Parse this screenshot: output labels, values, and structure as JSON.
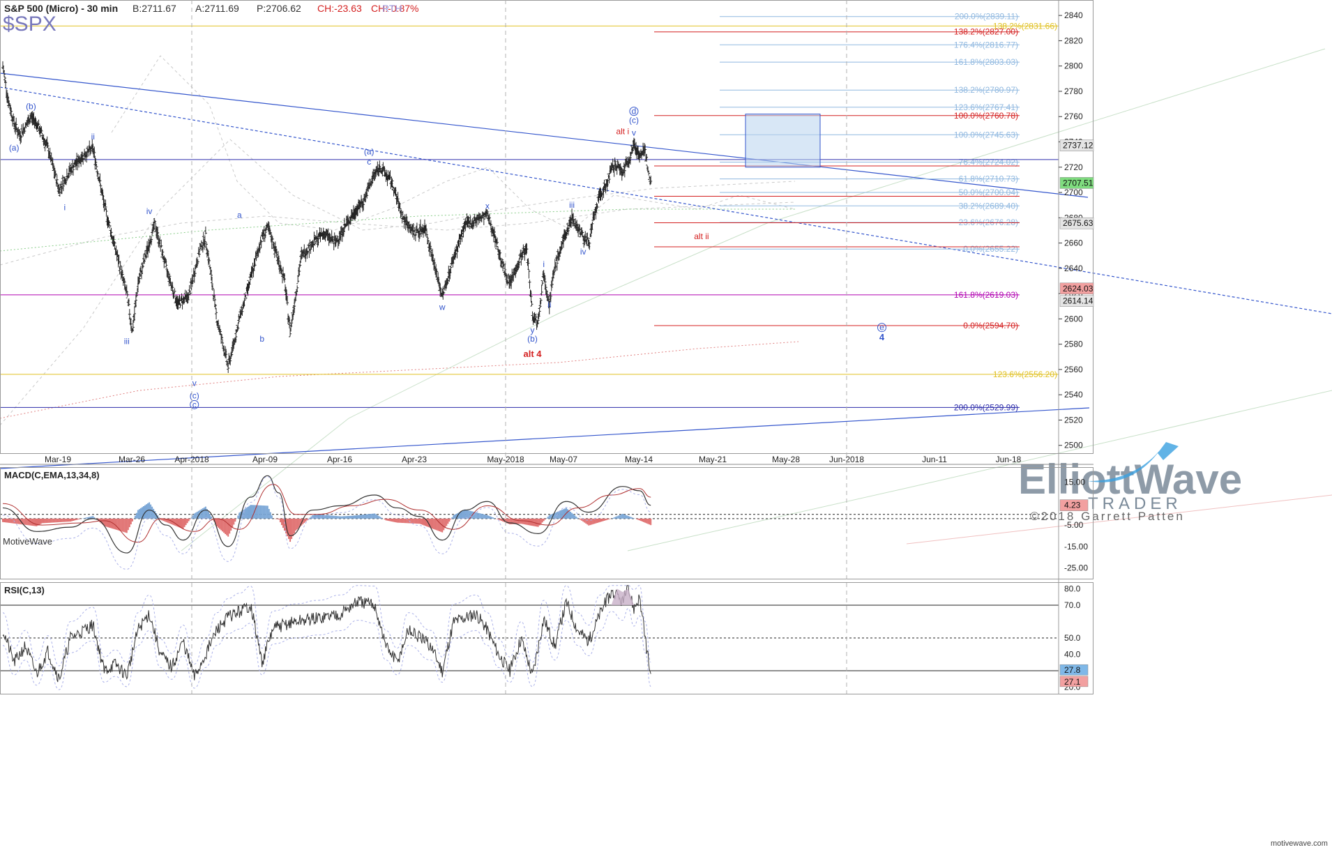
{
  "header": {
    "instrument": "S&P 500 (Micro) - 30 min",
    "bid": "B:2711.67",
    "ask": "A:2711.69",
    "price": "P:2706.62",
    "change": "CH:-23.63",
    "change_pct": "CH:-0.87%",
    "session": "RTH",
    "symbol": "$SPX"
  },
  "watermark": {
    "brand_top": "ElliottWave",
    "brand_bottom": "TRADER",
    "copyright": "©2018 Garrett Patten",
    "platform": "MotiveWave",
    "site": "motivewave.com"
  },
  "colors": {
    "bars": "#222222",
    "blue": "#3355cc",
    "red": "#d42020",
    "magenta": "#b000b0",
    "gold": "#e0c020",
    "lightblue": "#8fb8e0",
    "grid": "#b0b0b0",
    "macd_pos": "#7aa6d6",
    "macd_neg": "#e07070",
    "rsi_band": "#c8b0c8"
  },
  "chart_data": [
    {
      "type": "candlestick",
      "title": "S&P 500 (Micro) - 30 min",
      "x_ticks": [
        "Mar-19",
        "Mar-26",
        "Apr-2018",
        "Apr-09",
        "Apr-16",
        "Apr-23",
        "May-2018",
        "May-07",
        "May-14",
        "May-21",
        "May-28",
        "Jun-2018",
        "Jun-11",
        "Jun-18"
      ],
      "y_ticks": [
        2500,
        2520,
        2540,
        2560,
        2580,
        2600,
        2620,
        2640,
        2660,
        2680,
        2700,
        2720,
        2740,
        2760,
        2780,
        2800,
        2820,
        2840
      ],
      "ylim": [
        2496,
        2850
      ],
      "price_path": [
        {
          "x": 0,
          "y": 2800
        },
        {
          "x": 1,
          "y": 2772
        },
        {
          "x": 2,
          "y": 2755
        },
        {
          "x": 3,
          "y": 2745
        },
        {
          "x": 4,
          "y": 2752
        },
        {
          "x": 5,
          "y": 2760
        },
        {
          "x": 6,
          "y": 2755
        },
        {
          "x": 8,
          "y": 2735
        },
        {
          "x": 10,
          "y": 2702
        },
        {
          "x": 12,
          "y": 2718
        },
        {
          "x": 14,
          "y": 2728
        },
        {
          "x": 16,
          "y": 2735
        },
        {
          "x": 17,
          "y": 2713
        },
        {
          "x": 18,
          "y": 2690
        },
        {
          "x": 20,
          "y": 2655
        },
        {
          "x": 22,
          "y": 2620
        },
        {
          "x": 23,
          "y": 2590
        },
        {
          "x": 24,
          "y": 2628
        },
        {
          "x": 26,
          "y": 2660
        },
        {
          "x": 27,
          "y": 2675
        },
        {
          "x": 29,
          "y": 2640
        },
        {
          "x": 31,
          "y": 2612
        },
        {
          "x": 33,
          "y": 2618
        },
        {
          "x": 35,
          "y": 2655
        },
        {
          "x": 36,
          "y": 2665
        },
        {
          "x": 38,
          "y": 2600
        },
        {
          "x": 40,
          "y": 2562
        },
        {
          "x": 42,
          "y": 2600
        },
        {
          "x": 44,
          "y": 2632
        },
        {
          "x": 46,
          "y": 2665
        },
        {
          "x": 47,
          "y": 2672
        },
        {
          "x": 48,
          "y": 2660
        },
        {
          "x": 50,
          "y": 2630
        },
        {
          "x": 51,
          "y": 2590
        },
        {
          "x": 53,
          "y": 2650
        },
        {
          "x": 55,
          "y": 2660
        },
        {
          "x": 57,
          "y": 2668
        },
        {
          "x": 59,
          "y": 2660
        },
        {
          "x": 61,
          "y": 2675
        },
        {
          "x": 63,
          "y": 2688
        },
        {
          "x": 64,
          "y": 2693
        },
        {
          "x": 66,
          "y": 2715
        },
        {
          "x": 67,
          "y": 2720
        },
        {
          "x": 69,
          "y": 2708
        },
        {
          "x": 71,
          "y": 2680
        },
        {
          "x": 73,
          "y": 2668
        },
        {
          "x": 75,
          "y": 2672
        },
        {
          "x": 77,
          "y": 2635
        },
        {
          "x": 78,
          "y": 2618
        },
        {
          "x": 80,
          "y": 2648
        },
        {
          "x": 82,
          "y": 2674
        },
        {
          "x": 84,
          "y": 2678
        },
        {
          "x": 86,
          "y": 2682
        },
        {
          "x": 87,
          "y": 2670
        },
        {
          "x": 89,
          "y": 2638
        },
        {
          "x": 90,
          "y": 2628
        },
        {
          "x": 92,
          "y": 2650
        },
        {
          "x": 93,
          "y": 2655
        },
        {
          "x": 94,
          "y": 2603
        },
        {
          "x": 95,
          "y": 2598
        },
        {
          "x": 96,
          "y": 2637
        },
        {
          "x": 97,
          "y": 2612
        },
        {
          "x": 98,
          "y": 2642
        },
        {
          "x": 100,
          "y": 2668
        },
        {
          "x": 101,
          "y": 2680
        },
        {
          "x": 103,
          "y": 2665
        },
        {
          "x": 104,
          "y": 2660
        },
        {
          "x": 105,
          "y": 2682
        },
        {
          "x": 106,
          "y": 2698
        },
        {
          "x": 107,
          "y": 2705
        },
        {
          "x": 108,
          "y": 2718
        },
        {
          "x": 109,
          "y": 2722
        },
        {
          "x": 110,
          "y": 2716
        },
        {
          "x": 111,
          "y": 2725
        },
        {
          "x": 112,
          "y": 2738
        },
        {
          "x": 113,
          "y": 2730
        },
        {
          "x": 114,
          "y": 2732
        },
        {
          "x": 115,
          "y": 2707
        }
      ],
      "bar_range": [
        0,
        115
      ],
      "axis_price_labels": [
        {
          "value": 2737.12,
          "label": "2737.12",
          "style": "gray"
        },
        {
          "value": 2707.51,
          "label": "2707.51",
          "style": "green"
        },
        {
          "value": 2675.63,
          "label": "2675.63",
          "style": "gray"
        },
        {
          "value": 2624.03,
          "label": "2624.03",
          "style": "red"
        },
        {
          "value": 2614.14,
          "label": "2614.14",
          "style": "gray"
        }
      ],
      "fib_levels_blue": [
        {
          "value": 2839.11,
          "label": "200.0%(2839.11)"
        },
        {
          "value": 2816.77,
          "label": "176.4%(2816.77)"
        },
        {
          "value": 2803.03,
          "label": "161.8%(2803.03)"
        },
        {
          "value": 2780.97,
          "label": "138.2%(2780.97)"
        },
        {
          "value": 2767.41,
          "label": "123.6%(2767.41)"
        },
        {
          "value": 2745.63,
          "label": "100.0%(2745.63)"
        },
        {
          "value": 2724.02,
          "label": "76.4%(2724.02)"
        },
        {
          "value": 2710.73,
          "label": "61.8%(2710.73)"
        },
        {
          "value": 2700.04,
          "label": "50.0%(2700.04)"
        },
        {
          "value": 2689.4,
          "label": "38.2%(2689.40)"
        },
        {
          "value": 2676.28,
          "label": "23.6%(2676.28)"
        },
        {
          "value": 2655.22,
          "label": "0.0%(2655.22)"
        }
      ],
      "fib_levels_red": [
        {
          "value": 2827.0,
          "label": "138.2%(2827.00)"
        },
        {
          "value": 2760.78,
          "label": "100.0%(2760.78)"
        },
        {
          "value": 2594.7,
          "label": "0.0%(2594.70)"
        }
      ],
      "fib_levels_magenta": [
        {
          "value": 2619.03,
          "label": "161.8%(2619.03)"
        }
      ],
      "fib_levels_gold": [
        {
          "value": 2831.66,
          "label": "138.2%(2831.66)"
        },
        {
          "value": 2556.2,
          "label": "123.6%(2556.20)"
        }
      ],
      "fib_levels_navy": [
        {
          "value": 2529.99,
          "label": "200.0%(2529.99)"
        }
      ],
      "wave_labels": [
        {
          "text": "(a)",
          "x": 2,
          "y": 2733,
          "color": "blue"
        },
        {
          "text": "(b)",
          "x": 5,
          "y": 2766,
          "color": "blue"
        },
        {
          "text": "ii",
          "x": 16,
          "y": 2742,
          "color": "blue"
        },
        {
          "text": "i",
          "x": 11,
          "y": 2686,
          "color": "blue"
        },
        {
          "text": "iv",
          "x": 26,
          "y": 2683,
          "color": "blue"
        },
        {
          "text": "iii",
          "x": 22,
          "y": 2580,
          "color": "blue"
        },
        {
          "text": "v",
          "x": 34,
          "y": 2547,
          "color": "blue"
        },
        {
          "text": "(c)",
          "x": 34,
          "y": 2537,
          "color": "blue"
        },
        {
          "text": "c",
          "x": 34,
          "y": 2530,
          "color": "blue",
          "circled": true
        },
        {
          "text": "a",
          "x": 42,
          "y": 2680,
          "color": "blue"
        },
        {
          "text": "b",
          "x": 46,
          "y": 2582,
          "color": "blue"
        },
        {
          "text": "(a)",
          "x": 65,
          "y": 2730,
          "color": "blue"
        },
        {
          "text": "c",
          "x": 65,
          "y": 2722,
          "color": "blue"
        },
        {
          "text": "w",
          "x": 78,
          "y": 2607,
          "color": "blue"
        },
        {
          "text": "x",
          "x": 86,
          "y": 2687,
          "color": "blue"
        },
        {
          "text": "i",
          "x": 96,
          "y": 2641,
          "color": "blue"
        },
        {
          "text": "ii",
          "x": 97,
          "y": 2609,
          "color": "blue"
        },
        {
          "text": "y",
          "x": 94,
          "y": 2589,
          "color": "blue"
        },
        {
          "text": "(b)",
          "x": 94,
          "y": 2582,
          "color": "blue"
        },
        {
          "text": "alt 4",
          "x": 94,
          "y": 2570,
          "color": "red",
          "bold": true
        },
        {
          "text": "iii",
          "x": 101,
          "y": 2688,
          "color": "blue"
        },
        {
          "text": "iv",
          "x": 103,
          "y": 2651,
          "color": "blue"
        },
        {
          "text": "alt i",
          "x": 110,
          "y": 2746,
          "color": "red"
        },
        {
          "text": "d",
          "x": 112,
          "y": 2762,
          "color": "blue",
          "circled": true
        },
        {
          "text": "(c)",
          "x": 112,
          "y": 2755,
          "color": "blue"
        },
        {
          "text": "v",
          "x": 112,
          "y": 2745,
          "color": "blue"
        },
        {
          "text": "alt ii",
          "x": 124,
          "y": 2663,
          "color": "red"
        },
        {
          "text": "e",
          "x": 156,
          "y": 2591,
          "color": "blue",
          "circled": true
        },
        {
          "text": "4",
          "x": 156,
          "y": 2583,
          "color": "blue",
          "bold": true
        }
      ]
    },
    {
      "type": "macd",
      "title": "MACD(C,EMA,13,34,8)",
      "y_ticks": [
        15.0,
        5.0,
        -5.0,
        -15.0,
        -25.0
      ],
      "y_tick_labels": [
        "15.00",
        "",
        "-5.00",
        "-15.00",
        "-25.00"
      ],
      "ylim": [
        -30,
        22
      ],
      "last_value_label": "4.23",
      "macd_path": [
        {
          "x": 0,
          "y": 3
        },
        {
          "x": 6,
          "y": -8
        },
        {
          "x": 12,
          "y": -6
        },
        {
          "x": 16,
          "y": -2
        },
        {
          "x": 22,
          "y": -18
        },
        {
          "x": 26,
          "y": 2
        },
        {
          "x": 29,
          "y": -5
        },
        {
          "x": 32,
          "y": -12
        },
        {
          "x": 36,
          "y": 2
        },
        {
          "x": 40,
          "y": -15
        },
        {
          "x": 44,
          "y": 8
        },
        {
          "x": 47,
          "y": 18
        },
        {
          "x": 49,
          "y": 10
        },
        {
          "x": 51,
          "y": -10
        },
        {
          "x": 55,
          "y": 2
        },
        {
          "x": 60,
          "y": 4
        },
        {
          "x": 66,
          "y": 9
        },
        {
          "x": 70,
          "y": 3
        },
        {
          "x": 74,
          "y": -1
        },
        {
          "x": 78,
          "y": -12
        },
        {
          "x": 82,
          "y": 2
        },
        {
          "x": 86,
          "y": 6
        },
        {
          "x": 90,
          "y": -4
        },
        {
          "x": 95,
          "y": -9
        },
        {
          "x": 100,
          "y": 6
        },
        {
          "x": 104,
          "y": 1
        },
        {
          "x": 110,
          "y": 13
        },
        {
          "x": 113,
          "y": 11
        },
        {
          "x": 115,
          "y": 4.23
        }
      ],
      "signal_path": [
        {
          "x": 0,
          "y": 5
        },
        {
          "x": 7,
          "y": -5
        },
        {
          "x": 14,
          "y": -4
        },
        {
          "x": 18,
          "y": -3
        },
        {
          "x": 24,
          "y": -13
        },
        {
          "x": 28,
          "y": -2
        },
        {
          "x": 34,
          "y": -8
        },
        {
          "x": 38,
          "y": -2
        },
        {
          "x": 42,
          "y": -7
        },
        {
          "x": 48,
          "y": 14
        },
        {
          "x": 52,
          "y": 0
        },
        {
          "x": 56,
          "y": 0
        },
        {
          "x": 62,
          "y": 4
        },
        {
          "x": 68,
          "y": 7
        },
        {
          "x": 74,
          "y": 2
        },
        {
          "x": 80,
          "y": -7
        },
        {
          "x": 86,
          "y": 4
        },
        {
          "x": 92,
          "y": -3
        },
        {
          "x": 97,
          "y": -5
        },
        {
          "x": 102,
          "y": 3
        },
        {
          "x": 108,
          "y": 9
        },
        {
          "x": 113,
          "y": 12
        },
        {
          "x": 115,
          "y": 8
        }
      ],
      "zero_lines": [
        0,
        -2
      ]
    },
    {
      "type": "rsi",
      "title": "RSI(C,13)",
      "y_ticks": [
        80.0,
        70.0,
        50.0,
        40.0,
        30.0,
        20.0
      ],
      "y_tick_labels": [
        "80.0",
        "70.0",
        "50.0",
        "40.0",
        "",
        "20.0"
      ],
      "ylim": [
        16,
        84
      ],
      "bands": [
        70,
        50,
        30
      ],
      "last_value_labels": [
        "27.8",
        "27.1"
      ],
      "rsi_path": [
        {
          "x": 0,
          "y": 55
        },
        {
          "x": 2,
          "y": 35
        },
        {
          "x": 4,
          "y": 45
        },
        {
          "x": 6,
          "y": 28
        },
        {
          "x": 8,
          "y": 42
        },
        {
          "x": 10,
          "y": 25
        },
        {
          "x": 12,
          "y": 50
        },
        {
          "x": 16,
          "y": 58
        },
        {
          "x": 18,
          "y": 30
        },
        {
          "x": 20,
          "y": 34
        },
        {
          "x": 22,
          "y": 27
        },
        {
          "x": 24,
          "y": 55
        },
        {
          "x": 26,
          "y": 65
        },
        {
          "x": 28,
          "y": 40
        },
        {
          "x": 30,
          "y": 32
        },
        {
          "x": 32,
          "y": 48
        },
        {
          "x": 34,
          "y": 26
        },
        {
          "x": 36,
          "y": 40
        },
        {
          "x": 38,
          "y": 55
        },
        {
          "x": 40,
          "y": 63
        },
        {
          "x": 42,
          "y": 66
        },
        {
          "x": 44,
          "y": 70
        },
        {
          "x": 46,
          "y": 35
        },
        {
          "x": 48,
          "y": 56
        },
        {
          "x": 52,
          "y": 60
        },
        {
          "x": 56,
          "y": 62
        },
        {
          "x": 60,
          "y": 65
        },
        {
          "x": 63,
          "y": 72
        },
        {
          "x": 66,
          "y": 70
        },
        {
          "x": 68,
          "y": 45
        },
        {
          "x": 70,
          "y": 35
        },
        {
          "x": 72,
          "y": 55
        },
        {
          "x": 76,
          "y": 45
        },
        {
          "x": 78,
          "y": 30
        },
        {
          "x": 80,
          "y": 60
        },
        {
          "x": 84,
          "y": 65
        },
        {
          "x": 86,
          "y": 55
        },
        {
          "x": 88,
          "y": 40
        },
        {
          "x": 90,
          "y": 30
        },
        {
          "x": 92,
          "y": 50
        },
        {
          "x": 94,
          "y": 27
        },
        {
          "x": 96,
          "y": 62
        },
        {
          "x": 98,
          "y": 45
        },
        {
          "x": 100,
          "y": 72
        },
        {
          "x": 102,
          "y": 55
        },
        {
          "x": 104,
          "y": 48
        },
        {
          "x": 106,
          "y": 65
        },
        {
          "x": 108,
          "y": 78
        },
        {
          "x": 110,
          "y": 72
        },
        {
          "x": 111,
          "y": 80
        },
        {
          "x": 112,
          "y": 68
        },
        {
          "x": 113,
          "y": 75
        },
        {
          "x": 114,
          "y": 50
        },
        {
          "x": 115,
          "y": 27.1
        }
      ]
    }
  ]
}
